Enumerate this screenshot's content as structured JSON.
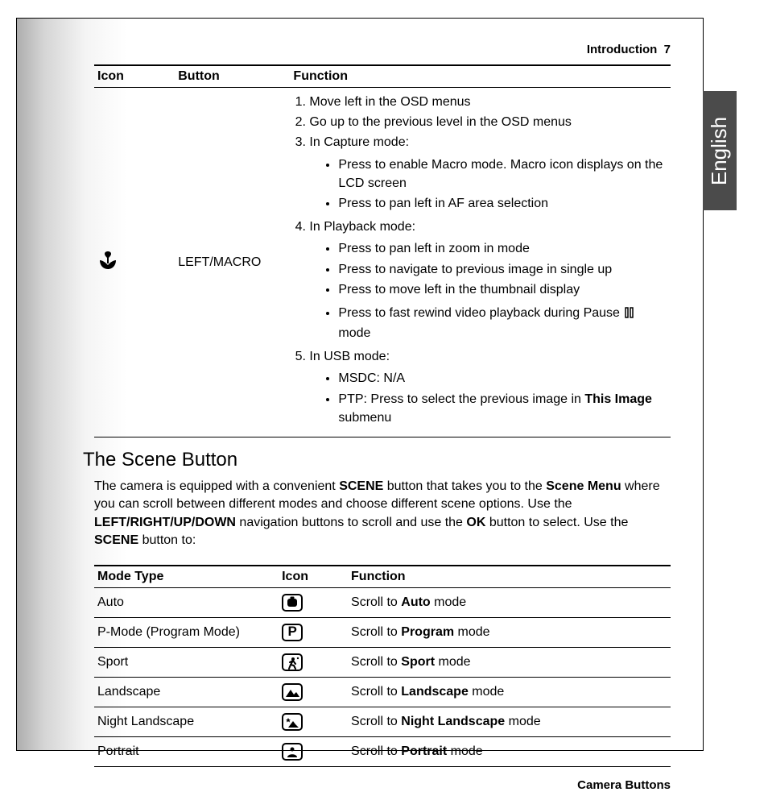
{
  "header": {
    "section": "Introduction",
    "page": "7"
  },
  "language_tab": "English",
  "footer": "Camera Buttons",
  "top_table": {
    "headers": {
      "icon": "Icon",
      "button": "Button",
      "function": "Function"
    },
    "button_label": "LEFT/MACRO",
    "f1": "Move left in the OSD menus",
    "f2": "Go up to the previous level in the OSD menus",
    "f3": "In Capture mode:",
    "f3a": "Press to enable Macro mode. Macro icon displays on the LCD screen",
    "f3b": "Press to pan left in AF area selection",
    "f4": "In Playback mode:",
    "f4a": "Press to pan left in zoom in mode",
    "f4b": "Press to navigate to previous image in single up",
    "f4c": "Press to move left in the thumbnail display",
    "f4d_pre": "Press to fast rewind video playback during Pause ",
    "f4d_post": " mode",
    "f5": "In USB mode:",
    "f5a": "MSDC: N/A",
    "f5b_pre": "PTP: Press to select the previous image in ",
    "f5b_bold": "This Image",
    "f5b_post": " submenu"
  },
  "scene": {
    "title": "The Scene Button",
    "p_1": "The camera is equipped with a convenient ",
    "p_b1": "SCENE",
    "p_2": " button that takes you to the ",
    "p_b2": "Scene Menu",
    "p_3": " where you can scroll between different modes and choose different scene options. Use the ",
    "p_b3": "LEFT/RIGHT/UP/DOWN",
    "p_4": " navigation buttons to scroll and use the ",
    "p_b4": "OK",
    "p_5": " button to select. Use the ",
    "p_b5": "SCENE",
    "p_6": " button to:"
  },
  "mode_table": {
    "headers": {
      "mode": "Mode Type",
      "icon": "Icon",
      "function": "Function"
    },
    "rows": [
      {
        "type": "Auto",
        "icon": "auto",
        "pre": "Scroll to ",
        "bold": "Auto",
        "post": " mode"
      },
      {
        "type": "P-Mode (Program Mode)",
        "icon": "p",
        "pre": "Scroll to ",
        "bold": "Program",
        "post": " mode"
      },
      {
        "type": "Sport",
        "icon": "sport",
        "pre": "Scroll to ",
        "bold": "Sport",
        "post": " mode"
      },
      {
        "type": "Landscape",
        "icon": "landscape",
        "pre": "Scroll to ",
        "bold": "Landscape",
        "post": " mode"
      },
      {
        "type": "Night Landscape",
        "icon": "night",
        "pre": "Scroll to ",
        "bold": "Night Landscape",
        "post": " mode"
      },
      {
        "type": "Portrait",
        "icon": "portrait",
        "pre": "Scroll to ",
        "bold": "Portrait",
        "post": " mode"
      }
    ]
  }
}
